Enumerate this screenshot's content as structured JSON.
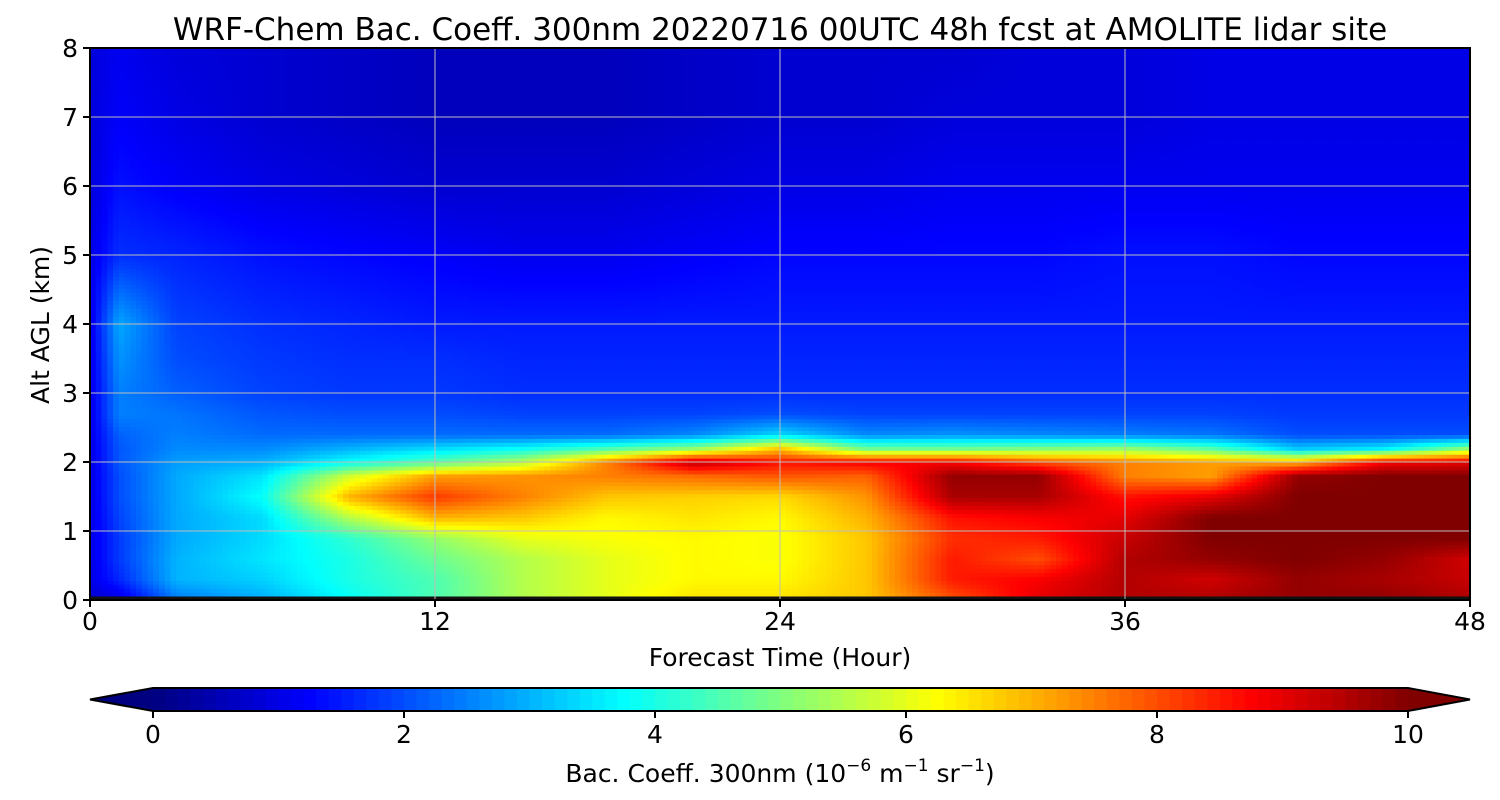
{
  "chart_data": {
    "type": "heatmap",
    "title": "WRF-Chem Bac. Coeff. 300nm  20220716 00UTC 48h fcst at AMOLITE lidar site",
    "xlabel": "Forecast Time (Hour)",
    "ylabel": "Alt AGL (km)",
    "xlim": [
      0,
      48
    ],
    "ylim": [
      0,
      8
    ],
    "xticks": [
      0,
      12,
      24,
      36,
      48
    ],
    "yticks": [
      0,
      1,
      2,
      3,
      4,
      5,
      6,
      7,
      8
    ],
    "grid": true,
    "colormap": "jet",
    "colorbar": {
      "label_main": "Bac. Coeff. 300nm  (10",
      "label_exp1": "−6",
      "label_mid": " m",
      "label_exp2": "−1",
      "label_mid2": " sr",
      "label_exp3": "−1",
      "label_end": ")",
      "ticks": [
        0,
        2,
        4,
        6,
        8,
        10
      ],
      "range": [
        0,
        10
      ],
      "extend": "both",
      "placement": "bottom"
    },
    "x": [
      0,
      1,
      3,
      6,
      9,
      12,
      15,
      18,
      21,
      24,
      27,
      30,
      33,
      36,
      39,
      42,
      45,
      48
    ],
    "y": [
      0,
      0.05,
      0.3,
      0.6,
      0.9,
      1.2,
      1.5,
      1.8,
      2.0,
      2.2,
      2.4,
      2.7,
      3.0,
      3.5,
      4.0,
      5.0,
      6.0,
      7.0,
      8.0
    ],
    "values": [
      [
        0.5,
        0.5,
        1.5,
        1.5,
        1.5,
        1.5,
        1.5,
        1.5,
        1.5,
        1.5,
        1.5,
        1.5,
        1.5,
        1.5,
        1.5,
        1.5,
        1.5,
        1.5
      ],
      [
        0.8,
        1.0,
        2.5,
        3.0,
        3.8,
        4.5,
        5.5,
        6.0,
        6.5,
        6.5,
        6.8,
        8.0,
        9.0,
        9.5,
        9.5,
        9.8,
        9.8,
        9.5
      ],
      [
        1.0,
        1.6,
        3.0,
        3.3,
        4.0,
        4.5,
        5.5,
        6.0,
        6.3,
        6.3,
        6.8,
        8.5,
        8.8,
        9.5,
        9.2,
        9.8,
        9.6,
        9.3
      ],
      [
        1.0,
        1.8,
        3.0,
        3.5,
        4.0,
        4.8,
        5.5,
        6.0,
        6.3,
        6.2,
        6.8,
        8.5,
        8.0,
        9.5,
        9.8,
        10.0,
        9.8,
        9.2
      ],
      [
        1.0,
        1.8,
        2.9,
        3.4,
        4.2,
        5.2,
        6.0,
        6.2,
        6.3,
        6.2,
        6.8,
        8.3,
        8.5,
        9.3,
        10.0,
        10.0,
        10.0,
        10.0
      ],
      [
        1.0,
        1.9,
        2.9,
        3.4,
        5.5,
        7.0,
        6.8,
        6.3,
        6.5,
        6.3,
        7.0,
        8.6,
        8.8,
        9.0,
        10.0,
        10.0,
        10.0,
        10.0
      ],
      [
        1.0,
        2.0,
        2.9,
        3.8,
        7.0,
        8.2,
        7.5,
        6.8,
        6.7,
        6.6,
        7.3,
        9.6,
        9.6,
        8.6,
        9.0,
        10.0,
        10.0,
        10.0
      ],
      [
        1.0,
        2.0,
        2.9,
        3.5,
        5.8,
        7.2,
        7.3,
        7.5,
        7.7,
        7.9,
        7.8,
        9.8,
        9.8,
        7.5,
        7.2,
        9.8,
        10.0,
        10.0
      ],
      [
        1.0,
        2.1,
        2.8,
        3.0,
        3.8,
        4.6,
        5.5,
        7.5,
        9.4,
        8.6,
        8.8,
        8.8,
        8.0,
        7.5,
        7.2,
        7.0,
        8.8,
        9.0
      ],
      [
        1.0,
        2.1,
        2.6,
        2.6,
        3.0,
        3.4,
        3.8,
        4.5,
        5.2,
        6.8,
        4.8,
        4.8,
        5.0,
        5.2,
        4.6,
        3.2,
        3.6,
        5.2
      ],
      [
        1.0,
        2.2,
        2.5,
        2.3,
        2.3,
        2.3,
        2.3,
        2.3,
        2.6,
        3.4,
        2.6,
        2.7,
        2.6,
        2.5,
        2.4,
        2.0,
        2.0,
        2.0
      ],
      [
        1.0,
        2.5,
        2.4,
        2.1,
        2.0,
        2.0,
        1.9,
        1.9,
        1.9,
        2.0,
        1.9,
        1.9,
        1.9,
        1.9,
        1.9,
        1.8,
        1.8,
        1.8
      ],
      [
        1.0,
        2.5,
        2.2,
        1.9,
        1.8,
        1.8,
        1.7,
        1.7,
        1.7,
        1.7,
        1.7,
        1.7,
        1.7,
        1.7,
        1.7,
        1.7,
        1.7,
        1.7
      ],
      [
        1.0,
        2.7,
        2.0,
        1.8,
        1.7,
        1.7,
        1.6,
        1.6,
        1.6,
        1.6,
        1.6,
        1.6,
        1.6,
        1.6,
        1.6,
        1.6,
        1.6,
        1.6
      ],
      [
        1.0,
        2.9,
        1.9,
        1.7,
        1.6,
        1.5,
        1.5,
        1.5,
        1.5,
        1.5,
        1.5,
        1.5,
        1.5,
        1.5,
        1.5,
        1.5,
        1.5,
        1.5
      ],
      [
        1.0,
        1.7,
        1.6,
        1.4,
        1.3,
        1.2,
        1.1,
        1.1,
        1.2,
        1.3,
        1.3,
        1.3,
        1.3,
        1.4,
        1.4,
        1.3,
        1.3,
        1.3
      ],
      [
        0.9,
        1.4,
        1.2,
        1.0,
        0.9,
        0.8,
        0.8,
        0.8,
        0.9,
        1.0,
        1.0,
        1.1,
        1.1,
        1.1,
        1.1,
        1.1,
        1.1,
        1.1
      ],
      [
        0.9,
        1.2,
        1.0,
        0.8,
        0.7,
        0.6,
        0.6,
        0.6,
        0.7,
        0.8,
        0.8,
        0.9,
        0.9,
        0.9,
        1.0,
        1.0,
        1.0,
        1.0
      ],
      [
        0.9,
        1.1,
        0.9,
        0.8,
        0.7,
        0.6,
        0.6,
        0.6,
        0.7,
        0.8,
        0.8,
        0.8,
        0.9,
        0.9,
        1.0,
        1.0,
        1.0,
        1.0
      ]
    ]
  }
}
